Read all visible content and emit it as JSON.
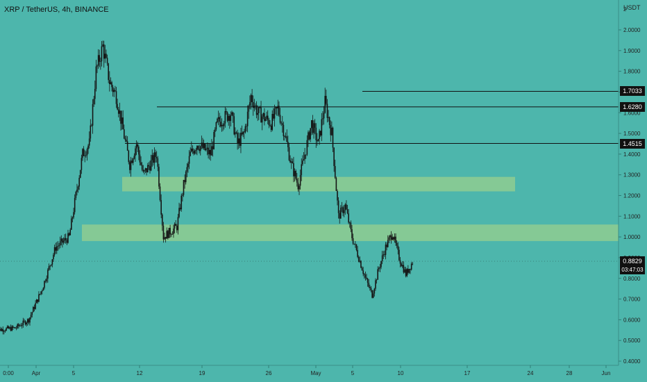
{
  "header": {
    "symbol_title": "XRP / TetherUS, 4h, BINANCE",
    "currency": "USDT"
  },
  "colors": {
    "background": "#4db6ac",
    "candle": "#151515",
    "zone_fill": "#c9e07a",
    "level_line": "#111111",
    "tag_bg": "#111111",
    "tag_text": "#ffffff"
  },
  "price_axis": {
    "min": 0.4,
    "max": 2.0,
    "ticks": [
      "0.4000",
      "0.5000",
      "0.6000",
      "0.7000",
      "0.8000",
      "0.9000",
      "1.0000",
      "1.1000",
      "1.2000",
      "1.3000",
      "1.4000",
      "1.5000",
      "1.6000",
      "1.7000",
      "1.8000",
      "1.9000",
      "2.0000"
    ],
    "top_label": "2"
  },
  "time_axis": {
    "labels": [
      "0:00",
      "Apr",
      "5",
      "12",
      "19",
      "26",
      "May",
      "5",
      "10",
      "17",
      "24",
      "28",
      "Jun"
    ]
  },
  "current": {
    "price_label": "0.8829",
    "countdown": "03:47:03"
  },
  "chart_data": {
    "type": "candlestick",
    "title": "XRP / TetherUS, 4h, BINANCE",
    "x": [
      "Mar 29",
      "Apr 1",
      "Apr 5",
      "Apr 12",
      "Apr 19",
      "Apr 26",
      "May 1",
      "May 5",
      "May 10",
      "May 17",
      "May 24",
      "May 28",
      "Jun 1"
    ],
    "close_path": [
      {
        "x": "Mar 29",
        "y": 0.55
      },
      {
        "x": "Apr 1",
        "y": 0.56
      },
      {
        "x": "Apr 3",
        "y": 0.6
      },
      {
        "x": "Apr 5",
        "y": 0.75
      },
      {
        "x": "Apr 7",
        "y": 0.95
      },
      {
        "x": "Apr 9",
        "y": 1.0
      },
      {
        "x": "Apr 10",
        "y": 1.2
      },
      {
        "x": "Apr 11",
        "y": 1.4
      },
      {
        "x": "Apr 12",
        "y": 1.45
      },
      {
        "x": "Apr 13",
        "y": 1.8
      },
      {
        "x": "Apr 14",
        "y": 1.92
      },
      {
        "x": "Apr 15",
        "y": 1.75
      },
      {
        "x": "Apr 16",
        "y": 1.68
      },
      {
        "x": "Apr 18",
        "y": 1.35
      },
      {
        "x": "Apr 19",
        "y": 1.45
      },
      {
        "x": "Apr 20",
        "y": 1.3
      },
      {
        "x": "Apr 22",
        "y": 1.4
      },
      {
        "x": "Apr 23",
        "y": 1.0
      },
      {
        "x": "Apr 25",
        "y": 1.05
      },
      {
        "x": "Apr 26",
        "y": 1.25
      },
      {
        "x": "Apr 27",
        "y": 1.4
      },
      {
        "x": "Apr 28",
        "y": 1.45
      },
      {
        "x": "Apr 30",
        "y": 1.4
      },
      {
        "x": "May 1",
        "y": 1.55
      },
      {
        "x": "May 3",
        "y": 1.6
      },
      {
        "x": "May 4",
        "y": 1.45
      },
      {
        "x": "May 5",
        "y": 1.5
      },
      {
        "x": "May 6",
        "y": 1.68
      },
      {
        "x": "May 7",
        "y": 1.6
      },
      {
        "x": "May 9",
        "y": 1.55
      },
      {
        "x": "May 10",
        "y": 1.62
      },
      {
        "x": "May 11",
        "y": 1.5
      },
      {
        "x": "May 12",
        "y": 1.35
      },
      {
        "x": "May 13",
        "y": 1.25
      },
      {
        "x": "May 14",
        "y": 1.4
      },
      {
        "x": "May 15",
        "y": 1.55
      },
      {
        "x": "May 16",
        "y": 1.45
      },
      {
        "x": "May 17",
        "y": 1.65
      },
      {
        "x": "May 18",
        "y": 1.5
      },
      {
        "x": "May 19",
        "y": 1.1
      },
      {
        "x": "May 20",
        "y": 1.15
      },
      {
        "x": "May 21",
        "y": 1.0
      },
      {
        "x": "May 22",
        "y": 0.9
      },
      {
        "x": "May 23",
        "y": 0.8
      },
      {
        "x": "May 24",
        "y": 0.72
      },
      {
        "x": "May 25",
        "y": 0.85
      },
      {
        "x": "May 26",
        "y": 0.95
      },
      {
        "x": "May 27",
        "y": 1.02
      },
      {
        "x": "May 28",
        "y": 0.9
      },
      {
        "x": "May 29",
        "y": 0.82
      },
      {
        "x": "May 30",
        "y": 0.88
      }
    ],
    "levels": [
      {
        "label": "1.7033",
        "value": 1.7033
      },
      {
        "label": "1.6280",
        "value": 1.628
      },
      {
        "label": "1.4515",
        "value": 1.4515
      }
    ],
    "zones": [
      {
        "from": 1.22,
        "to": 1.29
      },
      {
        "from": 0.98,
        "to": 1.06
      }
    ],
    "last_price": 0.8829,
    "ylim": [
      0.4,
      2.0
    ]
  }
}
